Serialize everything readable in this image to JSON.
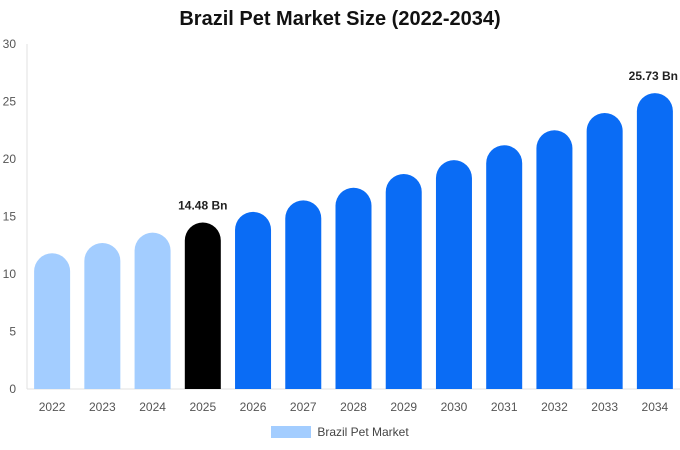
{
  "chart_data": {
    "type": "bar",
    "title": "Brazil Pet Market Size (2022-2034)",
    "xlabel": "",
    "ylabel": "",
    "ylim": [
      0,
      30
    ],
    "yticks": [
      0,
      5,
      10,
      15,
      20,
      25,
      30
    ],
    "grid": false,
    "legend_position": "bottom",
    "categories": [
      "2022",
      "2023",
      "2024",
      "2025",
      "2026",
      "2027",
      "2028",
      "2029",
      "2030",
      "2031",
      "2032",
      "2033",
      "2034"
    ],
    "series": [
      {
        "name": "Brazil Pet Market",
        "values": [
          11.8,
          12.7,
          13.6,
          14.48,
          15.4,
          16.4,
          17.5,
          18.7,
          19.9,
          21.2,
          22.5,
          24.0,
          25.73
        ]
      }
    ],
    "bar_colors": [
      "#a3cdff",
      "#a3cdff",
      "#a3cdff",
      "#000000",
      "#0a6cf5",
      "#0a6cf5",
      "#0a6cf5",
      "#0a6cf5",
      "#0a6cf5",
      "#0a6cf5",
      "#0a6cf5",
      "#0a6cf5",
      "#0a6cf5"
    ],
    "legend_color": "#a3cdff",
    "annotations": [
      {
        "category": "2025",
        "text": "14.48 Bn"
      },
      {
        "category": "2034",
        "text": "25.73 Bn"
      }
    ]
  }
}
